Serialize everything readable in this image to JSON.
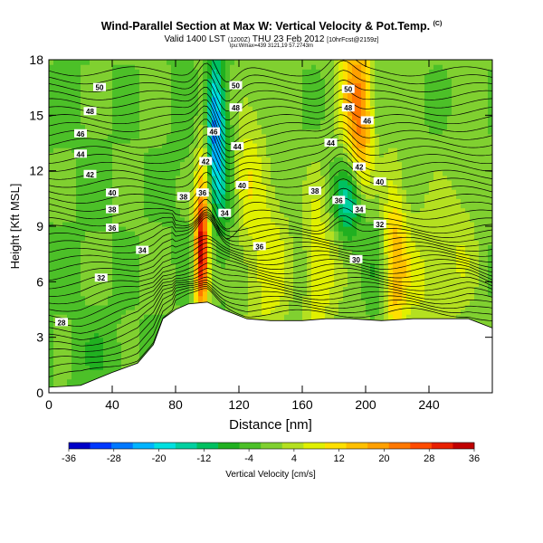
{
  "header": {
    "title": "Wind-Parallel Section at Max W: Vertical Velocity & Pot.Temp.",
    "title_mark": "(C)",
    "subtitle_main": "Valid 1400 LST",
    "subtitle_small1": "(1200Z)",
    "subtitle_main2": "THU 23 Feb 2012",
    "subtitle_small2": "[10hrFcst@2159z]",
    "subtitle_line2": "lpu:Wmax=439 3121,19 57.2743m"
  },
  "chart_data": {
    "type": "heatmap",
    "xlabel": "Distance [nm]",
    "ylabel": "Height [Kft MSL]",
    "xlim": [
      0,
      280
    ],
    "ylim": [
      0,
      18
    ],
    "xticks": [
      "0",
      "40",
      "80",
      "120",
      "160",
      "200",
      "240"
    ],
    "yticks": [
      "0",
      "3",
      "6",
      "9",
      "12",
      "15",
      "18"
    ],
    "colorbar": {
      "label": "Vertical Velocity [cm/s]",
      "tick_labels": [
        "-36",
        "-28",
        "-20",
        "-12",
        "-4",
        "4",
        "12",
        "20",
        "28",
        "36"
      ],
      "colors": [
        "#0000c8",
        "#0038ff",
        "#0078ff",
        "#00b4ff",
        "#00e0e0",
        "#00d0a0",
        "#00c060",
        "#20b020",
        "#4cc028",
        "#80d030",
        "#b4e020",
        "#e0f000",
        "#ffe000",
        "#ffc000",
        "#ffa000",
        "#ff7800",
        "#ff4c00",
        "#e82000",
        "#c00000"
      ]
    },
    "terrain": [
      [
        0,
        0.3
      ],
      [
        20,
        0.4
      ],
      [
        40,
        1.1
      ],
      [
        56,
        1.6
      ],
      [
        66,
        2.6
      ],
      [
        72,
        4.0
      ],
      [
        80,
        4.5
      ],
      [
        88,
        4.8
      ],
      [
        100,
        4.9
      ],
      [
        110,
        4.5
      ],
      [
        125,
        4.0
      ],
      [
        140,
        3.9
      ],
      [
        160,
        3.9
      ],
      [
        175,
        4.0
      ],
      [
        190,
        4.0
      ],
      [
        210,
        3.9
      ],
      [
        230,
        4.0
      ],
      [
        250,
        4.0
      ],
      [
        265,
        4.0
      ],
      [
        280,
        3.5
      ]
    ],
    "theta_labels": [
      {
        "text": "50",
        "x": 32,
        "y": 16.5
      },
      {
        "text": "48",
        "x": 26,
        "y": 15.2
      },
      {
        "text": "46",
        "x": 20,
        "y": 14.0
      },
      {
        "text": "44",
        "x": 20,
        "y": 12.9
      },
      {
        "text": "42",
        "x": 26,
        "y": 11.8
      },
      {
        "text": "40",
        "x": 40,
        "y": 10.8
      },
      {
        "text": "38",
        "x": 40,
        "y": 9.9
      },
      {
        "text": "36",
        "x": 40,
        "y": 8.9
      },
      {
        "text": "34",
        "x": 59,
        "y": 7.7
      },
      {
        "text": "32",
        "x": 33,
        "y": 6.2
      },
      {
        "text": "28",
        "x": 8,
        "y": 3.8
      },
      {
        "text": "50",
        "x": 118,
        "y": 16.6
      },
      {
        "text": "48",
        "x": 118,
        "y": 15.4
      },
      {
        "text": "46",
        "x": 104,
        "y": 14.1
      },
      {
        "text": "44",
        "x": 119,
        "y": 13.3
      },
      {
        "text": "42",
        "x": 99,
        "y": 12.5
      },
      {
        "text": "40",
        "x": 122,
        "y": 11.2
      },
      {
        "text": "38",
        "x": 85,
        "y": 10.6
      },
      {
        "text": "36",
        "x": 97,
        "y": 10.8
      },
      {
        "text": "34",
        "x": 111,
        "y": 9.7
      },
      {
        "text": "36",
        "x": 133,
        "y": 7.9
      },
      {
        "text": "50",
        "x": 189,
        "y": 16.4
      },
      {
        "text": "48",
        "x": 189,
        "y": 15.4
      },
      {
        "text": "46",
        "x": 201,
        "y": 14.7
      },
      {
        "text": "44",
        "x": 178,
        "y": 13.5
      },
      {
        "text": "42",
        "x": 196,
        "y": 12.2
      },
      {
        "text": "40",
        "x": 209,
        "y": 11.4
      },
      {
        "text": "38",
        "x": 168,
        "y": 10.9
      },
      {
        "text": "36",
        "x": 183,
        "y": 10.4
      },
      {
        "text": "34",
        "x": 196,
        "y": 9.9
      },
      {
        "text": "32",
        "x": 209,
        "y": 9.1
      },
      {
        "text": "30",
        "x": 194,
        "y": 7.2
      }
    ]
  }
}
